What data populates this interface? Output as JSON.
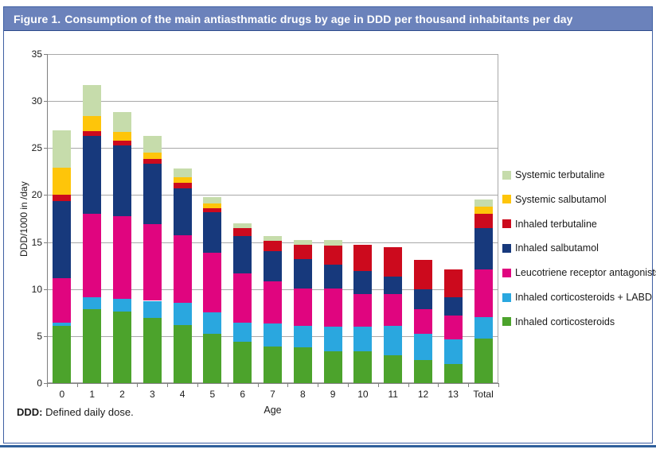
{
  "title": {
    "prefix": "Figure 1.",
    "text": "Consumption of the main antiasthmatic drugs by age in DDD per thousand inhabitants per day"
  },
  "footer": {
    "term": "DDD:",
    "definition": "Defined daily dose."
  },
  "colors": {
    "title_bar_bg": "#6b82bb",
    "box_border": "#3f5fa3",
    "bottom_rule": "#2f5f9b",
    "gridline": "#a8a8a8",
    "axis": "#7f7f7f"
  },
  "chart_data": {
    "type": "bar",
    "stacked": true,
    "xlabel": "Age",
    "ylabel": "DDD/1000 in /day",
    "ylim": [
      0,
      35
    ],
    "ytick_step": 5,
    "grid": "horizontal",
    "legend_position": "right",
    "legend_order": "top-is-last-series",
    "categories": [
      "0",
      "1",
      "2",
      "3",
      "4",
      "5",
      "6",
      "7",
      "8",
      "9",
      "10",
      "11",
      "12",
      "13",
      "Total"
    ],
    "series": [
      {
        "name": "Inhaled corticosteroids",
        "color": "#4ca32c",
        "values": [
          6.1,
          7.9,
          7.6,
          6.9,
          6.2,
          5.2,
          4.4,
          3.9,
          3.8,
          3.4,
          3.35,
          3.0,
          2.45,
          2.05,
          4.75
        ]
      },
      {
        "name": "Inhaled corticosteroids + LABD",
        "color": "#2aa7df",
        "values": [
          0.35,
          1.25,
          1.4,
          1.85,
          2.3,
          2.35,
          2.0,
          2.4,
          2.3,
          2.6,
          2.65,
          3.1,
          2.75,
          2.6,
          2.25
        ]
      },
      {
        "name": "Leucotriene receptor antagonists",
        "color": "#e0057f",
        "values": [
          4.75,
          8.85,
          8.75,
          8.15,
          7.2,
          6.35,
          5.3,
          4.5,
          4.0,
          4.1,
          3.45,
          3.4,
          2.7,
          2.5,
          5.1
        ]
      },
      {
        "name": "Inhaled salbutamol",
        "color": "#17397c",
        "values": [
          8.15,
          8.3,
          7.55,
          6.4,
          5.0,
          4.3,
          3.9,
          3.2,
          3.1,
          2.5,
          2.45,
          1.85,
          2.1,
          1.95,
          4.4
        ]
      },
      {
        "name": "Inhaled terbutaline",
        "color": "#cc0a1d",
        "values": [
          0.65,
          0.5,
          0.5,
          0.5,
          0.6,
          0.4,
          0.9,
          1.1,
          1.5,
          2.0,
          2.85,
          3.1,
          3.1,
          3.0,
          1.5
        ]
      },
      {
        "name": "Systemic salbutamol",
        "color": "#fec50a",
        "values": [
          2.9,
          1.6,
          0.95,
          0.7,
          0.6,
          0.5,
          0,
          0,
          0,
          0,
          0,
          0,
          0,
          0,
          0.75
        ]
      },
      {
        "name": "Systemic terbutaline",
        "color": "#c6dcab",
        "values": [
          3.95,
          3.3,
          2.05,
          1.8,
          0.9,
          0.7,
          0.5,
          0.5,
          0.5,
          0.6,
          0,
          0,
          0,
          0,
          0.75
        ]
      }
    ],
    "totals": [
      26.85,
      31.7,
      28.8,
      26.3,
      22.8,
      19.8,
      17.0,
      15.6,
      15.2,
      15.2,
      14.75,
      14.45,
      13.1,
      12.1,
      19.5
    ]
  }
}
